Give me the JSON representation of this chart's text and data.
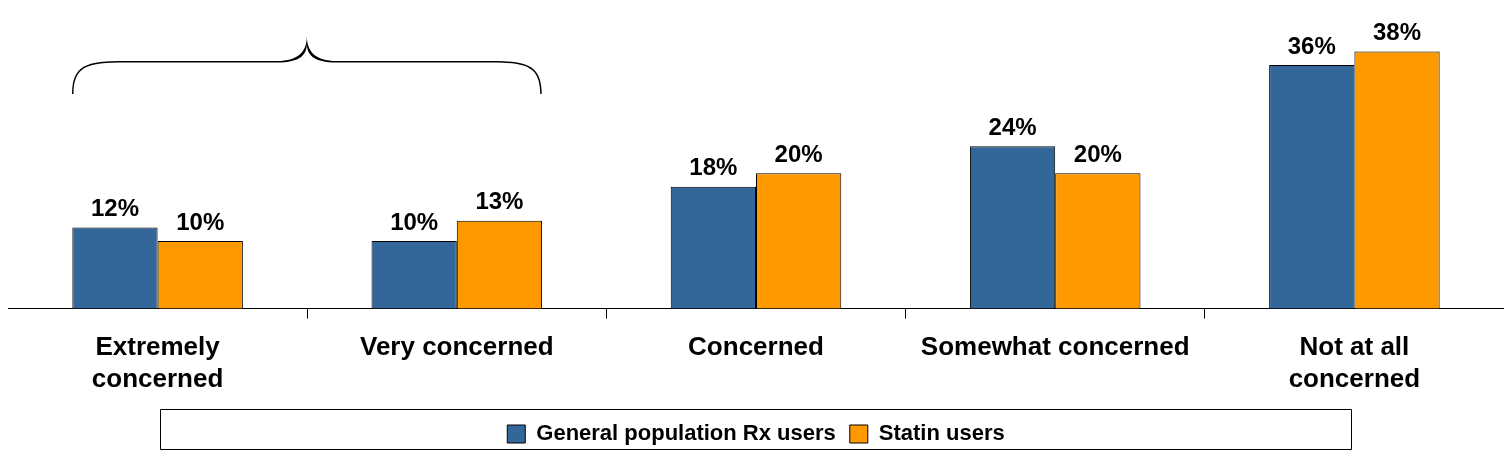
{
  "chart_data": {
    "type": "bar",
    "categories": [
      "Extremely concerned",
      "Very concerned",
      "Concerned",
      "Somewhat concerned",
      "Not at all concerned"
    ],
    "series": [
      {
        "name": "General population Rx users",
        "color": "#336699",
        "values": [
          12,
          10,
          18,
          24,
          36
        ],
        "value_labels": [
          "12%",
          "10%",
          "18%",
          "24%",
          "36%"
        ]
      },
      {
        "name": "Statin users",
        "color": "#ff9900",
        "values": [
          10,
          13,
          20,
          20,
          38
        ],
        "value_labels": [
          "10%",
          "13%",
          "20%",
          "20%",
          "38%"
        ]
      }
    ],
    "legend": "bottom",
    "grid": false
  }
}
